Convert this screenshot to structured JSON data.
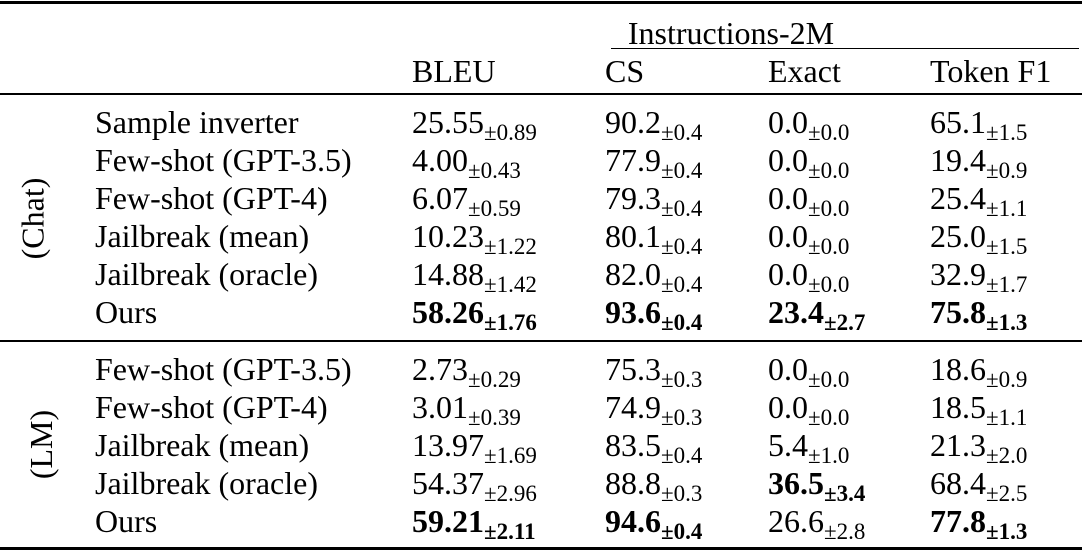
{
  "table": {
    "group_header": "Instructions-2M",
    "columns": [
      "BLEU",
      "CS",
      "Exact",
      "Token F1"
    ],
    "sections": [
      {
        "label": "(Chat)",
        "rows": [
          {
            "method": "Sample inverter",
            "cells": [
              {
                "v": "25.55",
                "e": "±0.89",
                "b": false
              },
              {
                "v": "90.2",
                "e": "±0.4",
                "b": false
              },
              {
                "v": "0.0",
                "e": "±0.0",
                "b": false
              },
              {
                "v": "65.1",
                "e": "±1.5",
                "b": false
              }
            ]
          },
          {
            "method": "Few-shot (GPT-3.5)",
            "cells": [
              {
                "v": "4.00",
                "e": "±0.43",
                "b": false
              },
              {
                "v": "77.9",
                "e": "±0.4",
                "b": false
              },
              {
                "v": "0.0",
                "e": "±0.0",
                "b": false
              },
              {
                "v": "19.4",
                "e": "±0.9",
                "b": false
              }
            ]
          },
          {
            "method": "Few-shot (GPT-4)",
            "cells": [
              {
                "v": "6.07",
                "e": "±0.59",
                "b": false
              },
              {
                "v": "79.3",
                "e": "±0.4",
                "b": false
              },
              {
                "v": "0.0",
                "e": "±0.0",
                "b": false
              },
              {
                "v": "25.4",
                "e": "±1.1",
                "b": false
              }
            ]
          },
          {
            "method": "Jailbreak (mean)",
            "cells": [
              {
                "v": "10.23",
                "e": "±1.22",
                "b": false
              },
              {
                "v": "80.1",
                "e": "±0.4",
                "b": false
              },
              {
                "v": "0.0",
                "e": "±0.0",
                "b": false
              },
              {
                "v": "25.0",
                "e": "±1.5",
                "b": false
              }
            ]
          },
          {
            "method": "Jailbreak (oracle)",
            "cells": [
              {
                "v": "14.88",
                "e": "±1.42",
                "b": false
              },
              {
                "v": "82.0",
                "e": "±0.4",
                "b": false
              },
              {
                "v": "0.0",
                "e": "±0.0",
                "b": false
              },
              {
                "v": "32.9",
                "e": "±1.7",
                "b": false
              }
            ]
          },
          {
            "method": "Ours",
            "cells": [
              {
                "v": "58.26",
                "e": "±1.76",
                "b": true
              },
              {
                "v": "93.6",
                "e": "±0.4",
                "b": true
              },
              {
                "v": "23.4",
                "e": "±2.7",
                "b": true
              },
              {
                "v": "75.8",
                "e": "±1.3",
                "b": true
              }
            ]
          }
        ]
      },
      {
        "label": "(LM)",
        "rows": [
          {
            "method": "Few-shot (GPT-3.5)",
            "cells": [
              {
                "v": "2.73",
                "e": "±0.29",
                "b": false
              },
              {
                "v": "75.3",
                "e": "±0.3",
                "b": false
              },
              {
                "v": "0.0",
                "e": "±0.0",
                "b": false
              },
              {
                "v": "18.6",
                "e": "±0.9",
                "b": false
              }
            ]
          },
          {
            "method": "Few-shot (GPT-4)",
            "cells": [
              {
                "v": "3.01",
                "e": "±0.39",
                "b": false
              },
              {
                "v": "74.9",
                "e": "±0.3",
                "b": false
              },
              {
                "v": "0.0",
                "e": "±0.0",
                "b": false
              },
              {
                "v": "18.5",
                "e": "±1.1",
                "b": false
              }
            ]
          },
          {
            "method": "Jailbreak (mean)",
            "cells": [
              {
                "v": "13.97",
                "e": "±1.69",
                "b": false
              },
              {
                "v": "83.5",
                "e": "±0.4",
                "b": false
              },
              {
                "v": "5.4",
                "e": "±1.0",
                "b": false
              },
              {
                "v": "21.3",
                "e": "±2.0",
                "b": false
              }
            ]
          },
          {
            "method": "Jailbreak (oracle)",
            "cells": [
              {
                "v": "54.37",
                "e": "±2.96",
                "b": false
              },
              {
                "v": "88.8",
                "e": "±0.3",
                "b": false
              },
              {
                "v": "36.5",
                "e": "±3.4",
                "b": true
              },
              {
                "v": "68.4",
                "e": "±2.5",
                "b": false
              }
            ]
          },
          {
            "method": "Ours",
            "cells": [
              {
                "v": "59.21",
                "e": "±2.11",
                "b": true
              },
              {
                "v": "94.6",
                "e": "±0.4",
                "b": true
              },
              {
                "v": "26.6",
                "e": "±2.8",
                "b": false
              },
              {
                "v": "77.8",
                "e": "±1.3",
                "b": true
              }
            ]
          }
        ]
      }
    ]
  }
}
